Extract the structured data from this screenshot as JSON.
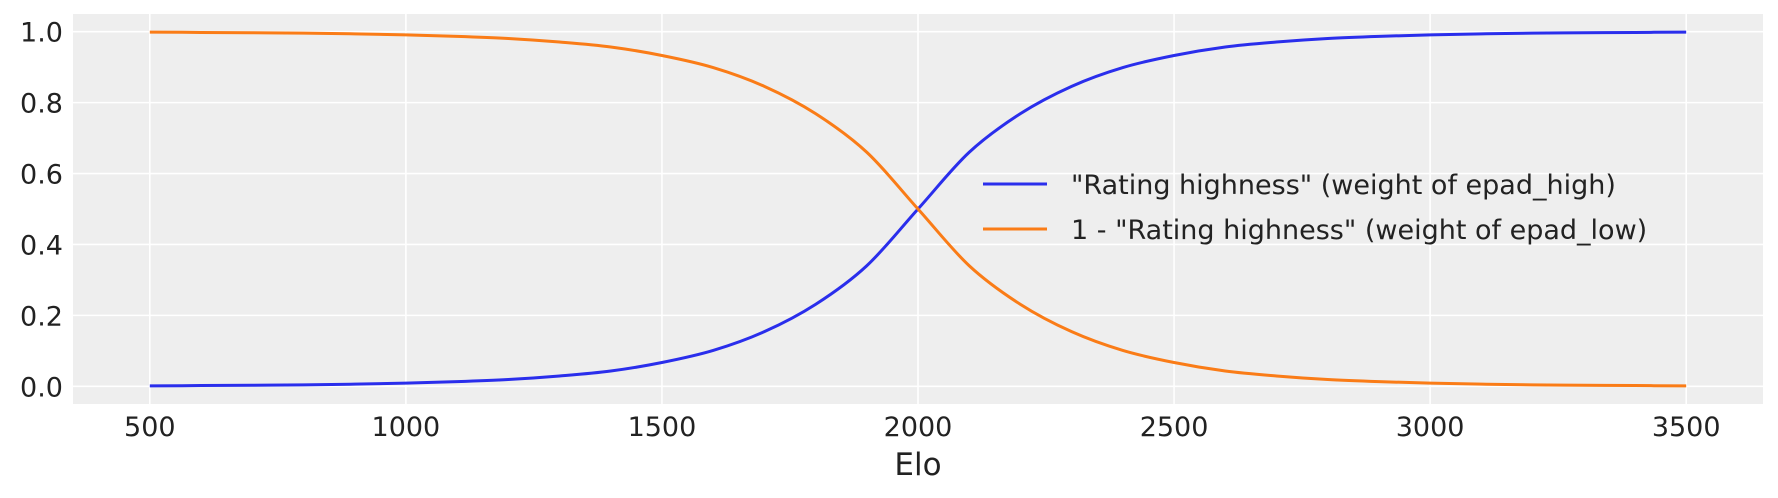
{
  "chart_data": {
    "type": "line",
    "xlabel": "Elo",
    "ylabel": "",
    "xlim": [
      350,
      3650
    ],
    "ylim": [
      -0.05,
      1.05
    ],
    "x_ticks": [
      500,
      1000,
      1500,
      2000,
      2500,
      3000,
      3500
    ],
    "x_tick_labels": [
      "500",
      "1000",
      "1500",
      "2000",
      "2500",
      "3000",
      "3500"
    ],
    "y_ticks": [
      0.0,
      0.2,
      0.4,
      0.6,
      0.8,
      1.0
    ],
    "y_tick_labels": [
      "0.0",
      "0.2",
      "0.4",
      "0.6",
      "0.8",
      "1.0"
    ],
    "grid": true,
    "legend_position": "center-right",
    "background_color": "#eeeeee",
    "x": [
      500,
      600,
      700,
      800,
      900,
      1000,
      1100,
      1200,
      1300,
      1400,
      1500,
      1600,
      1700,
      1800,
      1900,
      2000,
      2100,
      2200,
      2300,
      2400,
      2500,
      2600,
      2700,
      2800,
      2900,
      3000,
      3100,
      3200,
      3300,
      3400,
      3500
    ],
    "series": [
      {
        "name": "\"Rating highness\" (weight of epad_high)",
        "color": "#2a2eec",
        "values": [
          0.001,
          0.002,
          0.003,
          0.004,
          0.006,
          0.009,
          0.013,
          0.019,
          0.029,
          0.043,
          0.067,
          0.101,
          0.154,
          0.231,
          0.34,
          0.5,
          0.66,
          0.769,
          0.846,
          0.899,
          0.933,
          0.957,
          0.971,
          0.981,
          0.987,
          0.991,
          0.994,
          0.996,
          0.997,
          0.998,
          0.999
        ]
      },
      {
        "name": "1 - \"Rating highness\" (weight of epad_low)",
        "color": "#fa7c17",
        "values": [
          0.999,
          0.998,
          0.997,
          0.996,
          0.994,
          0.991,
          0.987,
          0.981,
          0.971,
          0.957,
          0.933,
          0.899,
          0.846,
          0.769,
          0.66,
          0.5,
          0.34,
          0.231,
          0.154,
          0.101,
          0.067,
          0.043,
          0.029,
          0.019,
          0.013,
          0.009,
          0.006,
          0.004,
          0.003,
          0.002,
          0.001
        ]
      }
    ]
  }
}
